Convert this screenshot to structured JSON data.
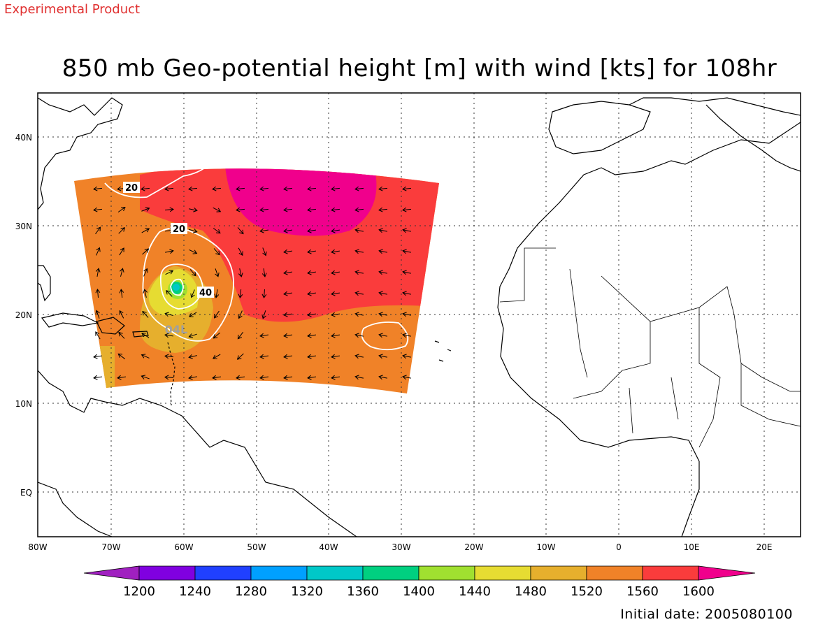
{
  "header": {
    "product_tag": "Experimental Product",
    "title": "850 mb Geo-potential height [m] with wind [kts] for 108hr"
  },
  "map": {
    "lon_labels": [
      "80W",
      "70W",
      "60W",
      "50W",
      "40W",
      "30W",
      "20W",
      "10W",
      "0",
      "10E",
      "20E"
    ],
    "lat_labels": [
      "40N",
      "30N",
      "20N",
      "10N",
      "EQ"
    ],
    "contour_labels": [
      "20",
      "20",
      "40"
    ],
    "storm_label": "04L"
  },
  "colorbar": {
    "labels": [
      "1200",
      "1240",
      "1280",
      "1320",
      "1360",
      "1400",
      "1440",
      "1480",
      "1520",
      "1560",
      "1600"
    ],
    "colors": [
      "#a020c0",
      "#8000e0",
      "#2040ff",
      "#00a0ff",
      "#00c8c8",
      "#00d080",
      "#a0e030",
      "#e6dc32",
      "#e6af2d",
      "#f08228",
      "#fa3c3c",
      "#f0008c"
    ]
  },
  "footer": {
    "initial_date": "Initial date: 2005080100"
  }
}
